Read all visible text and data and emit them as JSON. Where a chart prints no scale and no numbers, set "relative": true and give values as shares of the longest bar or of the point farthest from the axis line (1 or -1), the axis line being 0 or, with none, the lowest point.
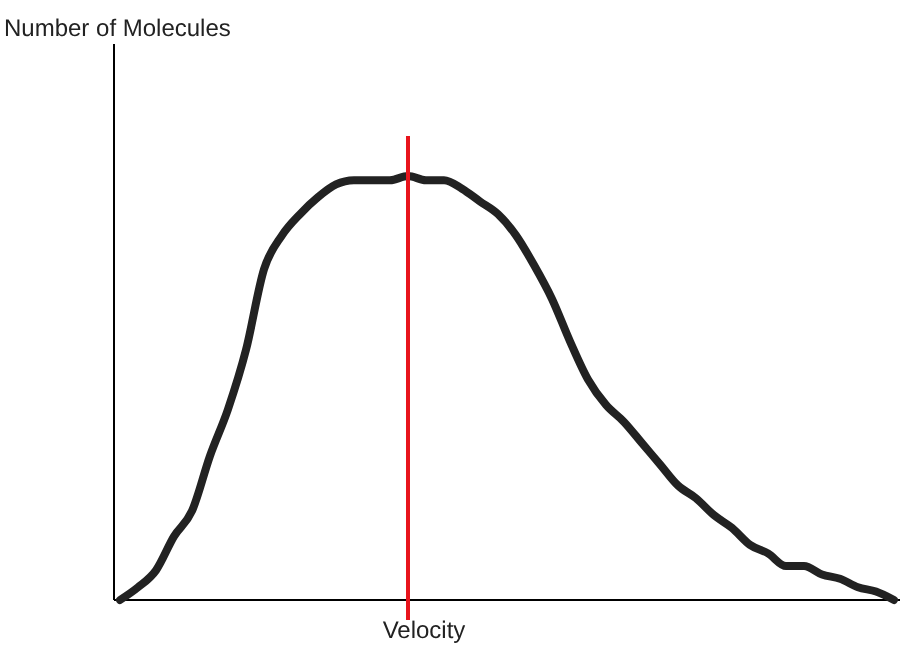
{
  "chart_data": {
    "type": "line",
    "relative": true,
    "xlabel": "Velocity",
    "annotations": [
      "Number of Molecules"
    ],
    "categories": [
      null,
      null,
      null,
      null,
      null,
      null,
      null,
      null,
      null,
      null,
      null,
      null,
      null,
      null,
      null,
      null,
      null,
      null,
      null,
      null,
      null,
      null,
      null,
      null,
      null,
      null,
      null,
      null,
      null,
      null,
      null,
      null,
      null,
      null,
      null,
      null,
      null,
      null,
      null,
      null,
      null,
      null,
      null,
      null
    ],
    "series": [
      {
        "color": "#222222",
        "values": [
          0,
          0.03,
          0.07,
          0.15,
          0.21,
          0.34,
          0.45,
          0.59,
          0.78,
          0.86,
          0.91,
          0.95,
          0.98,
          0.99,
          0.99,
          0.99,
          1.0,
          0.99,
          0.99,
          0.97,
          0.94,
          0.91,
          0.86,
          0.79,
          0.71,
          0.61,
          0.52,
          0.46,
          0.42,
          0.37,
          0.32,
          0.27,
          0.24,
          0.2,
          0.17,
          0.13,
          0.11,
          0.08,
          0.08,
          0.06,
          0.05,
          0.03,
          0.02,
          0.0
        ]
      }
    ],
    "marker": "none",
    "line_style": "solid"
  }
}
